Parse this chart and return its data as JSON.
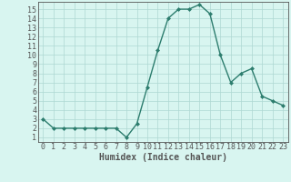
{
  "x": [
    0,
    1,
    2,
    3,
    4,
    5,
    6,
    7,
    8,
    9,
    10,
    11,
    12,
    13,
    14,
    15,
    16,
    17,
    18,
    19,
    20,
    21,
    22,
    23
  ],
  "y": [
    3,
    2,
    2,
    2,
    2,
    2,
    2,
    2,
    1,
    2.5,
    6.5,
    10.5,
    14,
    15,
    15,
    15.5,
    14.5,
    10,
    7,
    8,
    8.5,
    5.5,
    5,
    4.5
  ],
  "line_color": "#2d7d6e",
  "marker": "D",
  "marker_size": 2,
  "bg_color": "#d8f5f0",
  "grid_color": "#aed8d2",
  "xlabel": "Humidex (Indice chaleur)",
  "xlim": [
    -0.5,
    23.5
  ],
  "ylim": [
    0.5,
    15.8
  ],
  "yticks": [
    1,
    2,
    3,
    4,
    5,
    6,
    7,
    8,
    9,
    10,
    11,
    12,
    13,
    14,
    15
  ],
  "xticks": [
    0,
    1,
    2,
    3,
    4,
    5,
    6,
    7,
    8,
    9,
    10,
    11,
    12,
    13,
    14,
    15,
    16,
    17,
    18,
    19,
    20,
    21,
    22,
    23
  ],
  "xlabel_fontsize": 7,
  "tick_fontsize": 6,
  "line_width": 1.0,
  "spine_color": "#555555"
}
